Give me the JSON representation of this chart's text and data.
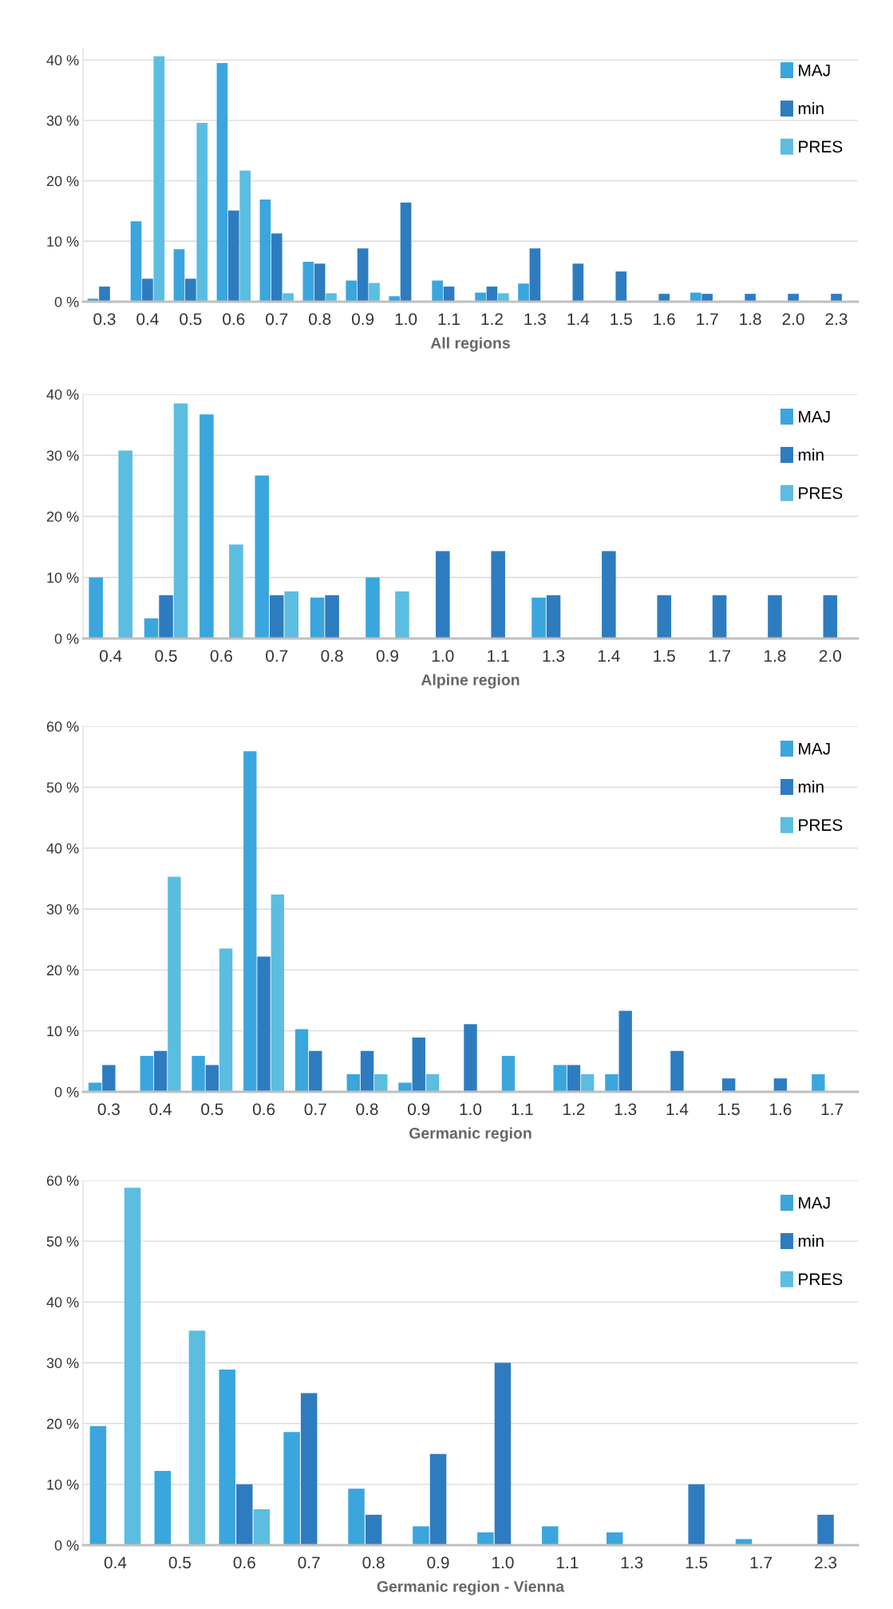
{
  "chart_data": [
    {
      "type": "bar",
      "xlabel": "All regions",
      "categories": [
        "0.3",
        "0.4",
        "0.5",
        "0.6",
        "0.7",
        "0.8",
        "0.9",
        "1.0",
        "1.1",
        "1.2",
        "1.3",
        "1.4",
        "1.5",
        "1.6",
        "1.7",
        "1.8",
        "2.0",
        "2.3"
      ],
      "series": [
        {
          "name": "MAJ",
          "color": "#3aa6dd",
          "values": [
            0.5,
            13.3,
            8.7,
            39.5,
            16.9,
            6.6,
            3.5,
            0.9,
            3.5,
            1.5,
            3.0,
            0,
            0,
            0,
            1.5,
            0,
            0,
            0
          ]
        },
        {
          "name": "min",
          "color": "#2e7cc0",
          "values": [
            2.5,
            3.8,
            3.8,
            15.1,
            11.3,
            6.3,
            8.8,
            16.4,
            2.5,
            2.5,
            8.8,
            6.3,
            5.0,
            1.3,
            1.3,
            1.3,
            1.3,
            1.3
          ]
        },
        {
          "name": "PRES",
          "color": "#5bbde0",
          "values": [
            0,
            40.6,
            29.6,
            21.7,
            1.4,
            1.4,
            3.1,
            0,
            0,
            1.4,
            0,
            0,
            0,
            0,
            0,
            0,
            0,
            0
          ]
        }
      ],
      "ylim": [
        0,
        42
      ],
      "yticks": [
        {
          "value": 0,
          "label": "0 %"
        },
        {
          "value": 10,
          "label": "10 %"
        },
        {
          "value": 20,
          "label": "20 %"
        },
        {
          "value": 30,
          "label": "30 %"
        },
        {
          "value": 40,
          "label": "40 %"
        }
      ],
      "grid": "y",
      "legend": "top right"
    },
    {
      "type": "bar",
      "xlabel": "Alpine region",
      "categories": [
        "0.4",
        "0.5",
        "0.6",
        "0.7",
        "0.8",
        "0.9",
        "1.0",
        "1.1",
        "1.3",
        "1.4",
        "1.5",
        "1.7",
        "1.8",
        "2.0"
      ],
      "series": [
        {
          "name": "MAJ",
          "color": "#3aa6dd",
          "values": [
            10,
            3.3,
            36.7,
            26.7,
            6.7,
            10,
            0,
            0,
            6.7,
            0,
            0,
            0,
            0,
            0
          ]
        },
        {
          "name": "min",
          "color": "#2e7cc0",
          "values": [
            0,
            7.1,
            0,
            7.1,
            7.1,
            0,
            14.3,
            14.3,
            7.1,
            14.3,
            7.1,
            7.1,
            7.1,
            7.1
          ]
        },
        {
          "name": "PRES",
          "color": "#5bbde0",
          "values": [
            30.8,
            38.5,
            15.4,
            7.7,
            0,
            7.7,
            0,
            0,
            0,
            0,
            0,
            0,
            0,
            0
          ]
        }
      ],
      "ylim": [
        0,
        40
      ],
      "yticks": [
        {
          "value": 0,
          "label": "0 %"
        },
        {
          "value": 10,
          "label": "10 %"
        },
        {
          "value": 20,
          "label": "20 %"
        },
        {
          "value": 30,
          "label": "30 %"
        },
        {
          "value": 40,
          "label": "40 %"
        }
      ],
      "grid": "y",
      "legend": "top right"
    },
    {
      "type": "bar",
      "xlabel": "Germanic region",
      "categories": [
        "0.3",
        "0.4",
        "0.5",
        "0.6",
        "0.7",
        "0.8",
        "0.9",
        "1.0",
        "1.1",
        "1.2",
        "1.3",
        "1.4",
        "1.5",
        "1.6",
        "1.7"
      ],
      "series": [
        {
          "name": "MAJ",
          "color": "#3aa6dd",
          "values": [
            1.5,
            5.9,
            5.9,
            55.9,
            10.3,
            2.9,
            1.5,
            0,
            5.9,
            4.4,
            2.9,
            0,
            0,
            0,
            2.9
          ]
        },
        {
          "name": "min",
          "color": "#2e7cc0",
          "values": [
            4.4,
            6.7,
            4.4,
            22.2,
            6.7,
            6.7,
            8.9,
            11.1,
            0,
            4.4,
            13.3,
            6.7,
            2.2,
            2.2,
            0
          ]
        },
        {
          "name": "PRES",
          "color": "#5bbde0",
          "values": [
            0,
            35.3,
            23.5,
            32.4,
            0,
            2.9,
            2.9,
            0,
            0,
            2.9,
            0,
            0,
            0,
            0,
            0
          ]
        }
      ],
      "ylim": [
        0,
        60
      ],
      "yticks": [
        {
          "value": 0,
          "label": "0 %"
        },
        {
          "value": 10,
          "label": "10 %"
        },
        {
          "value": 20,
          "label": "20 %"
        },
        {
          "value": 30,
          "label": "30 %"
        },
        {
          "value": 40,
          "label": "40 %"
        },
        {
          "value": 50,
          "label": "50 %"
        },
        {
          "value": 60,
          "label": "60 %"
        }
      ],
      "grid": "y",
      "legend": "top right"
    },
    {
      "type": "bar",
      "xlabel": "Germanic region - Vienna",
      "categories": [
        "0.4",
        "0.5",
        "0.6",
        "0.7",
        "0.8",
        "0.9",
        "1.0",
        "1.1",
        "1.3",
        "1.5",
        "1.7",
        "2.3"
      ],
      "series": [
        {
          "name": "MAJ",
          "color": "#3aa6dd",
          "values": [
            19.6,
            12.2,
            28.9,
            18.6,
            9.3,
            3.1,
            2.1,
            3.1,
            2.1,
            0,
            1.0,
            0
          ]
        },
        {
          "name": "min",
          "color": "#2e7cc0",
          "values": [
            0,
            0,
            10,
            25,
            5,
            15,
            30,
            0,
            0,
            10,
            0,
            5
          ]
        },
        {
          "name": "PRES",
          "color": "#5bbde0",
          "values": [
            58.8,
            35.3,
            5.9,
            0,
            0,
            0,
            0,
            0,
            0,
            0,
            0,
            0
          ]
        }
      ],
      "ylim": [
        0,
        60
      ],
      "yticks": [
        {
          "value": 0,
          "label": "0 %"
        },
        {
          "value": 10,
          "label": "10 %"
        },
        {
          "value": 20,
          "label": "20 %"
        },
        {
          "value": 30,
          "label": "30 %"
        },
        {
          "value": 40,
          "label": "40 %"
        },
        {
          "value": 50,
          "label": "50 %"
        },
        {
          "value": 60,
          "label": "60 %"
        }
      ],
      "grid": "y",
      "legend": "top right"
    }
  ]
}
